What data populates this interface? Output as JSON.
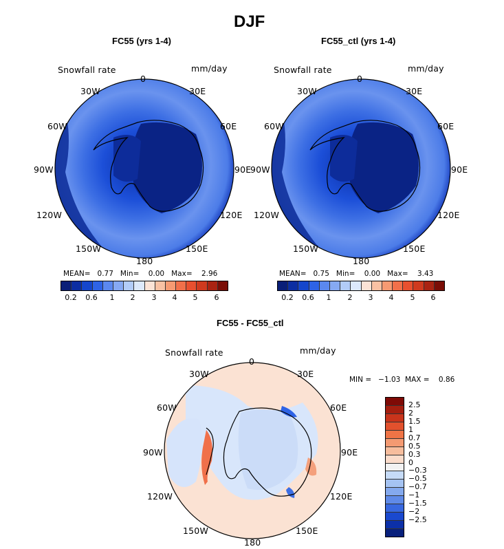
{
  "title": "DJF",
  "panels": [
    {
      "subtitle": "FC55 (yrs 1-4)",
      "variable": "Snowfall rate",
      "units": "mm/day",
      "stats": "MEAN=   0.77   Min=    0.00   Max=    2.96",
      "mean": 0.77,
      "min": 0.0,
      "max": 2.96
    },
    {
      "subtitle": "FC55_ctl (yrs 1-4)",
      "variable": "Snowfall rate",
      "units": "mm/day",
      "stats": "MEAN=   0.75   Min=    0.00   Max=    3.43",
      "mean": 0.75,
      "min": 0.0,
      "max": 3.43
    },
    {
      "subtitle": "FC55 - FC55_ctl",
      "variable": "Snowfall rate",
      "units": "mm/day",
      "stats": "MIN =   −1.03  MAX =    0.86",
      "min": -1.03,
      "max": 0.86
    }
  ],
  "longitude_labels": {
    "lon_0": "0",
    "lon_30e": "30E",
    "lon_60e": "60E",
    "lon_90e": "90E",
    "lon_120e": "120E",
    "lon_150e": "150E",
    "lon_180": "180",
    "lon_150w": "150W",
    "lon_120w": "120W",
    "lon_90w": "90W",
    "lon_60w": "60W",
    "lon_30w": "30W"
  },
  "horizontal_colorbar": {
    "colors": [
      "#0a1f78",
      "#0c2ea2",
      "#1546cc",
      "#2e63e6",
      "#5b88ef",
      "#86a9f3",
      "#b2ccf8",
      "#dde9fb",
      "#fce3d6",
      "#f9c1a3",
      "#f69a72",
      "#f1704a",
      "#e8502f",
      "#cf3a1f",
      "#aa2312",
      "#7a0d06"
    ],
    "tick_labels": [
      "0.2",
      "0.6",
      "1",
      "2",
      "3",
      "4",
      "5",
      "6"
    ]
  },
  "vertical_colorbar": {
    "colors": [
      "#7f0a06",
      "#a51e0f",
      "#c9341b",
      "#e2512d",
      "#ef7446",
      "#f49a72",
      "#f7bd9d",
      "#fbdccb",
      "#f2f2f2",
      "#c6dbf7",
      "#a5c3f2",
      "#84a9ee",
      "#5f8ae8",
      "#3868e0",
      "#1a49cf",
      "#0c30a8",
      "#08207c"
    ],
    "tick_labels": [
      "2.5",
      "2",
      "1.5",
      "1",
      "0.7",
      "0.5",
      "0.3",
      "0",
      "−0.3",
      "−0.5",
      "−0.7",
      "−1",
      "−1.5",
      "−2",
      "−2.5"
    ]
  }
}
